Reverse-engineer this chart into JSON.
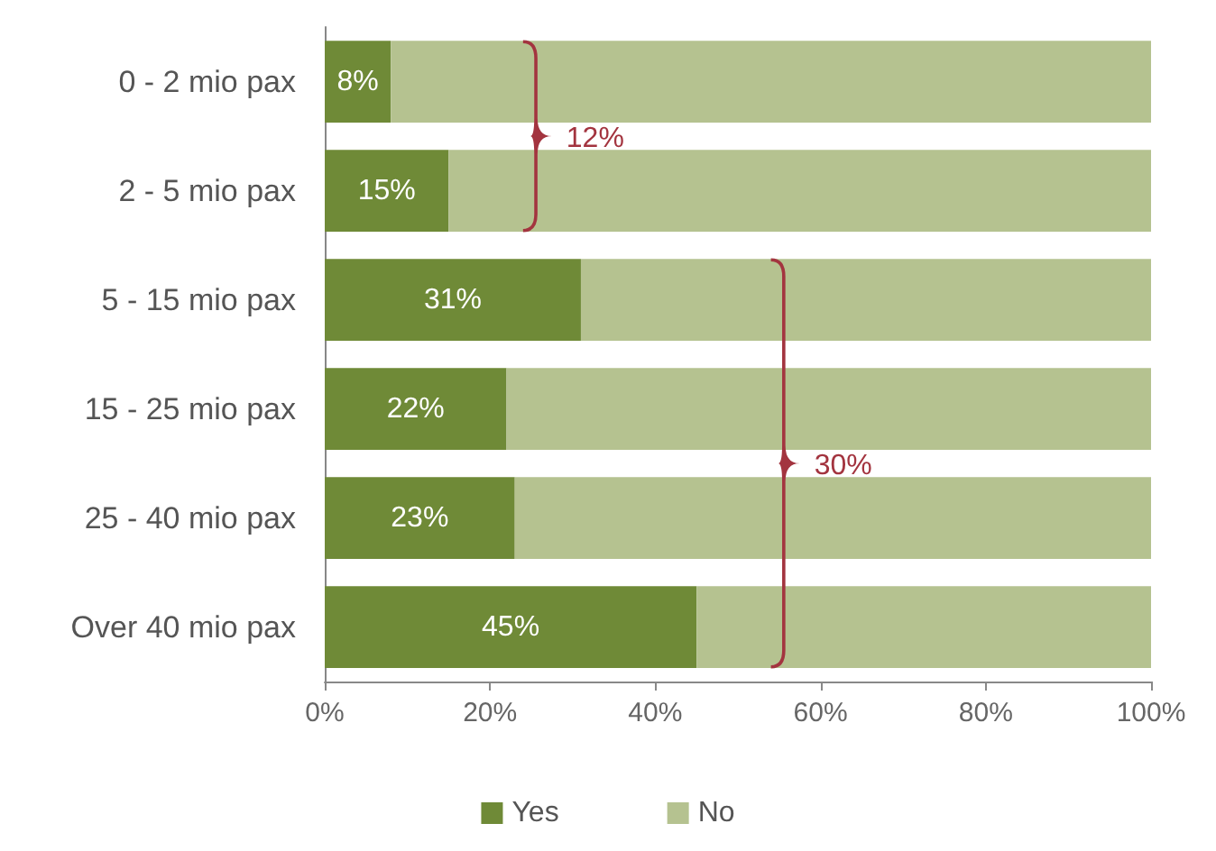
{
  "chart_data": {
    "type": "bar",
    "orientation": "horizontal",
    "stacked": true,
    "categories": [
      "0 - 2 mio pax",
      "2 - 5 mio pax",
      "5 - 15 mio pax",
      "15 - 25 mio pax",
      "25 - 40 mio pax",
      "Over 40 mio pax"
    ],
    "series": [
      {
        "name": "Yes",
        "color": "#6f8a37",
        "values": [
          8,
          15,
          31,
          22,
          23,
          45
        ],
        "value_labels": [
          "8%",
          "15%",
          "31%",
          "22%",
          "23%",
          "45%"
        ]
      },
      {
        "name": "No",
        "color": "#b5c290",
        "values": [
          92,
          85,
          69,
          78,
          77,
          55
        ]
      }
    ],
    "xlim": [
      0,
      100
    ],
    "xticks": [
      {
        "value": 0,
        "label": "0%"
      },
      {
        "value": 20,
        "label": "20%"
      },
      {
        "value": 40,
        "label": "40%"
      },
      {
        "value": 60,
        "label": "60%"
      },
      {
        "value": 80,
        "label": "80%"
      },
      {
        "value": 100,
        "label": "100%"
      }
    ],
    "annotations": [
      "12%",
      "30%"
    ],
    "grid": false,
    "legend": "bottom"
  }
}
